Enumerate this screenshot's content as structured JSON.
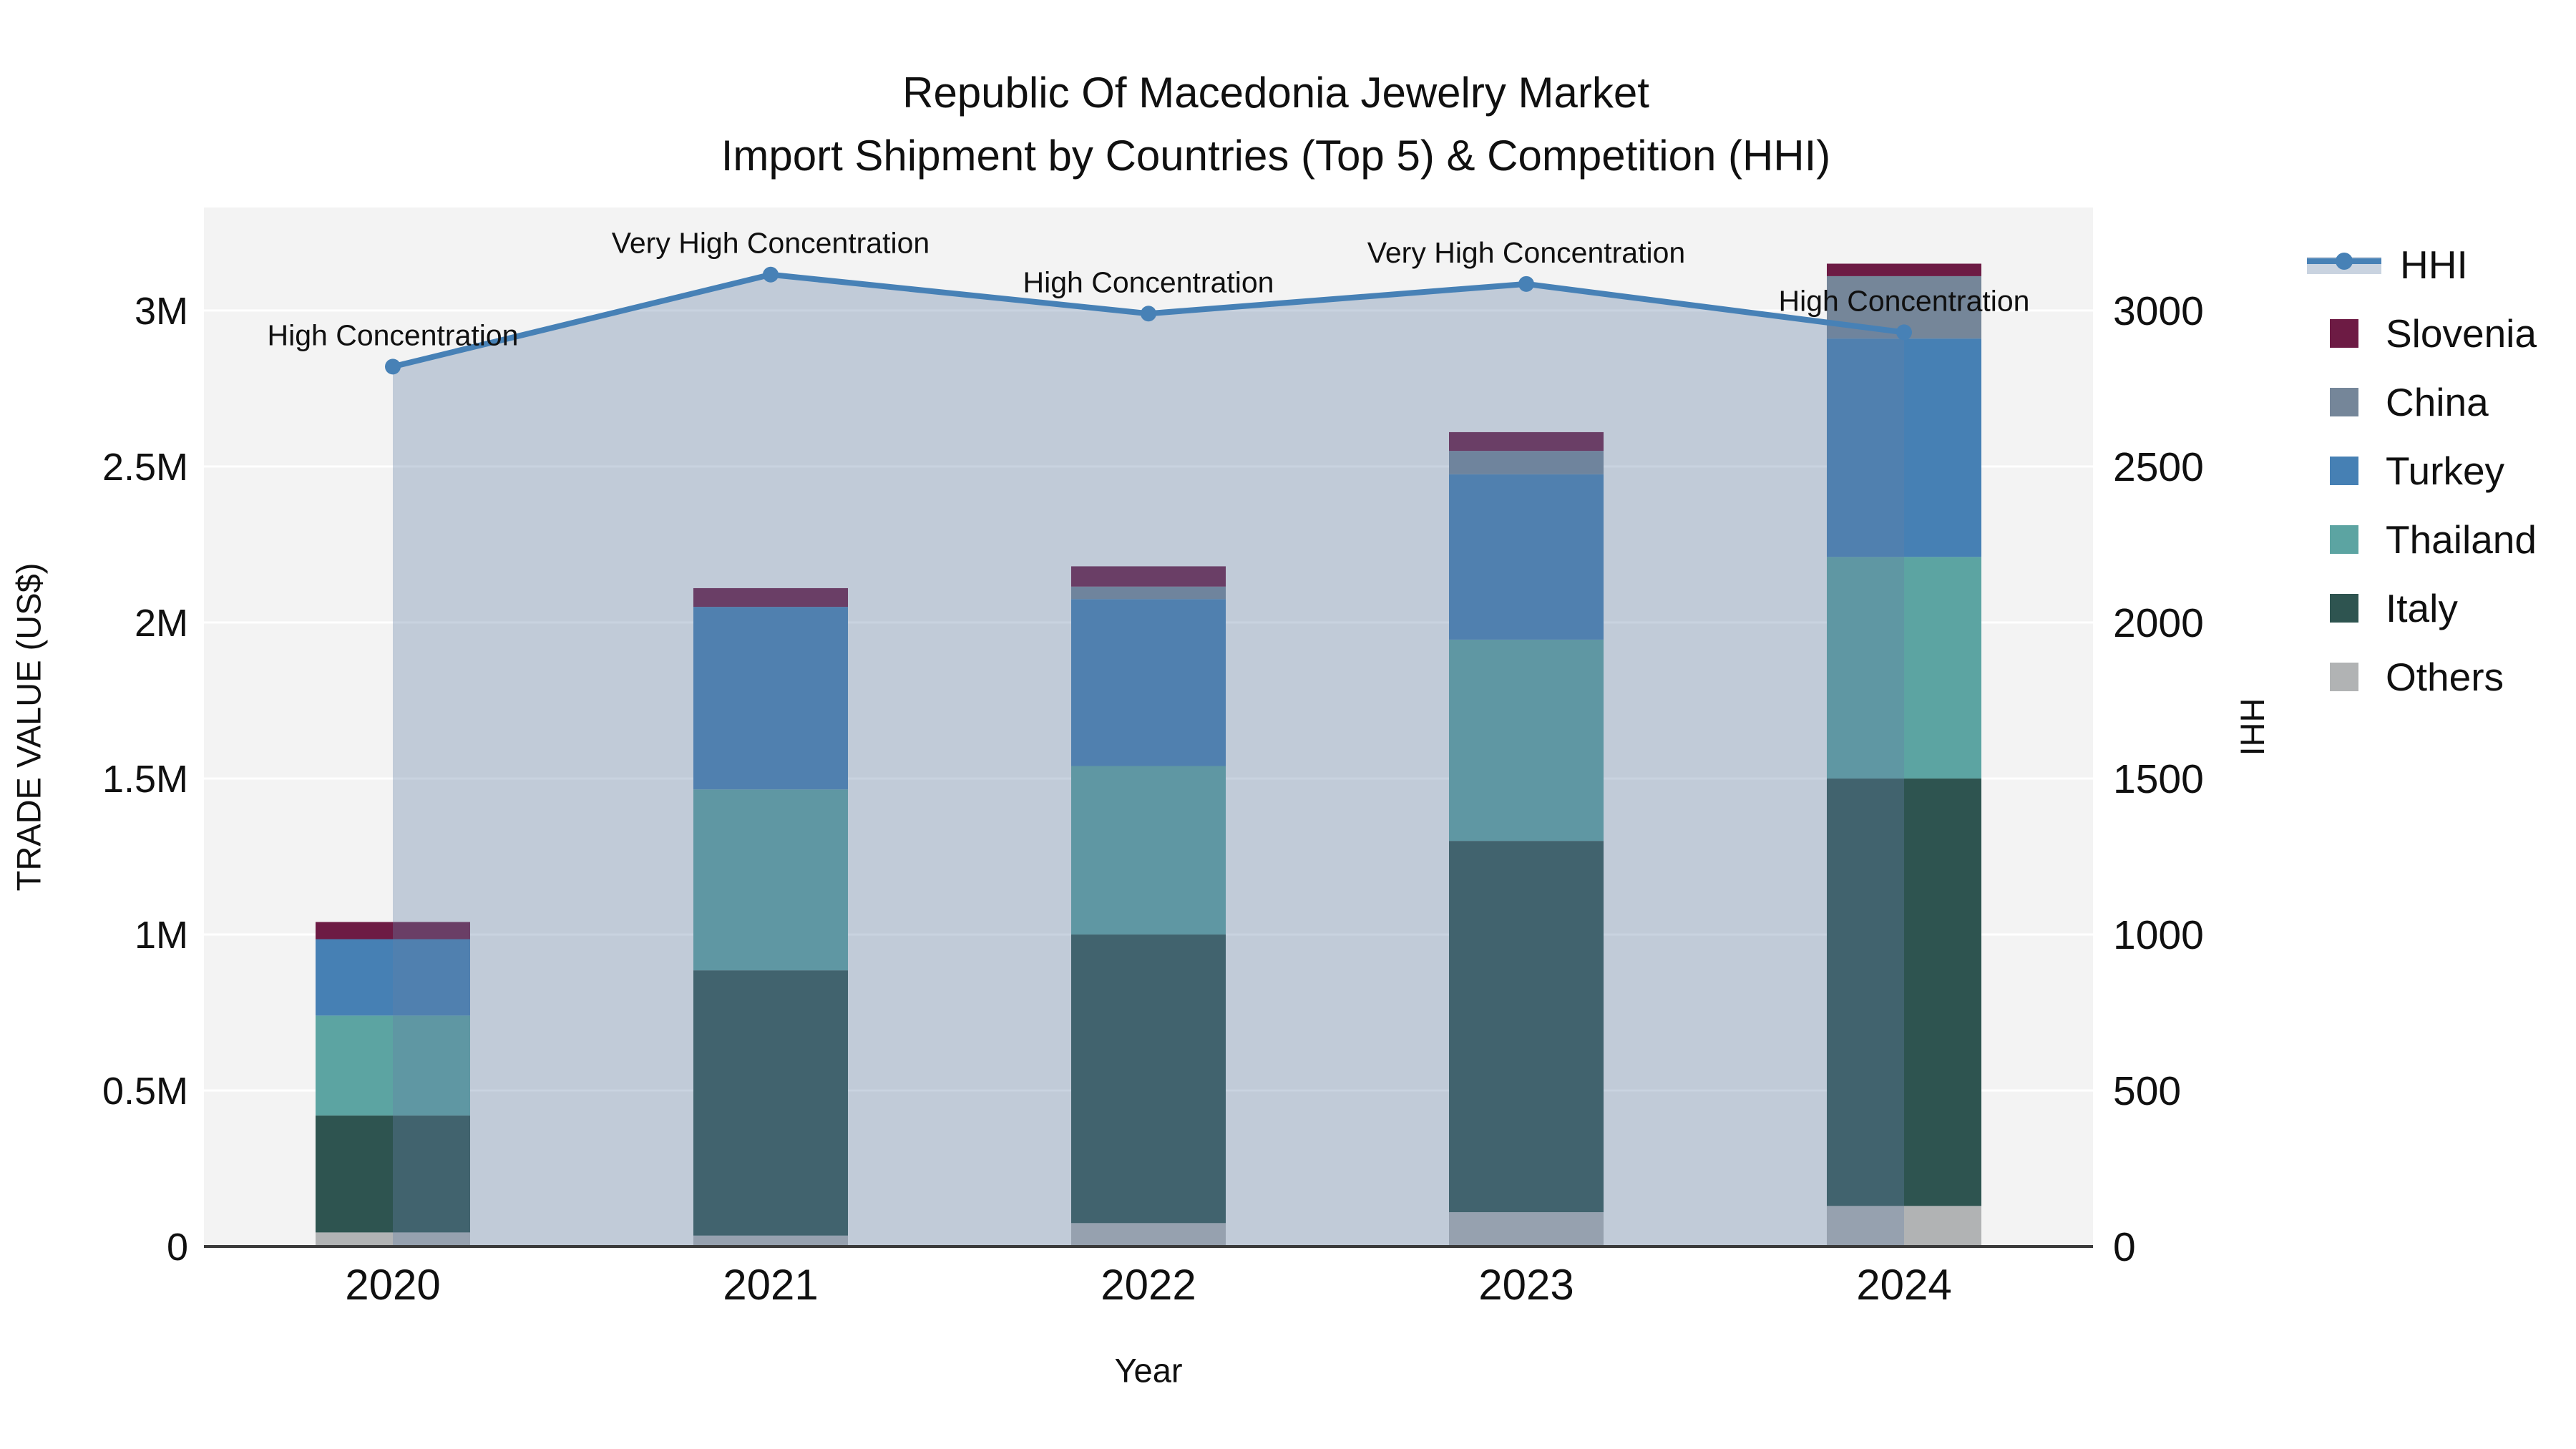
{
  "title": {
    "line1": "Republic Of Macedonia Jewelry Market",
    "line2": "Import Shipment by Countries (Top 5) & Competition (HHI)"
  },
  "axes": {
    "x": {
      "title": "Year",
      "categories": [
        "2020",
        "2021",
        "2022",
        "2023",
        "2024"
      ]
    },
    "y_left": {
      "title": "TRADE VALUE (US$)",
      "ticks": [
        "0",
        "0.5M",
        "1M",
        "1.5M",
        "2M",
        "2.5M",
        "3M"
      ],
      "tick_values": [
        0,
        500000,
        1000000,
        1500000,
        2000000,
        2500000,
        3000000
      ],
      "max": 3330000
    },
    "y_right": {
      "title": "HHI",
      "ticks": [
        "0",
        "500",
        "1000",
        "1500",
        "2000",
        "2500",
        "3000"
      ],
      "tick_values": [
        0,
        500,
        1000,
        1500,
        2000,
        2500,
        3000
      ],
      "max": 3330
    }
  },
  "chart_data": {
    "type": "bar+line",
    "categories": [
      "2020",
      "2021",
      "2022",
      "2023",
      "2024"
    ],
    "bar_stack_note": "stacked bars, US$ trade value, listed bottom-to-top",
    "bar_series": [
      {
        "name": "Others",
        "color": "#b1b3b4",
        "values": [
          45000,
          35000,
          75000,
          110000,
          130000
        ]
      },
      {
        "name": "Italy",
        "color": "#2e5450",
        "values": [
          375000,
          850000,
          925000,
          1190000,
          1370000
        ]
      },
      {
        "name": "Thailand",
        "color": "#5ca4a2",
        "values": [
          320000,
          580000,
          540000,
          645000,
          710000
        ]
      },
      {
        "name": "Turkey",
        "color": "#4680b4",
        "values": [
          245000,
          585000,
          535000,
          530000,
          700000
        ]
      },
      {
        "name": "China",
        "color": "#758699",
        "values": [
          0,
          0,
          40000,
          75000,
          200000
        ]
      },
      {
        "name": "Slovenia",
        "color": "#6d1b44",
        "values": [
          55000,
          60000,
          65000,
          60000,
          40000
        ]
      }
    ],
    "bar_totals": [
      1040000,
      2110000,
      2180000,
      2610000,
      3150000
    ],
    "line_series": {
      "name": "HHI",
      "axis": "right",
      "color": "#4781b6",
      "fill": "rgba(101,129,165,0.35)",
      "values": [
        2820,
        3115,
        2990,
        3085,
        2930
      ]
    },
    "annotations": [
      "High Concentration",
      "Very High Concentration",
      "High Concentration",
      "Very High Concentration",
      "High Concentration"
    ],
    "layout_hints": {
      "grid": true,
      "legend_position": "right",
      "plot_bg": "#f3f3f3"
    }
  },
  "legend": {
    "items": [
      {
        "label": "HHI",
        "type": "line",
        "color": "#4781b6",
        "band": "rgba(101,129,165,0.35)"
      },
      {
        "label": "Slovenia",
        "type": "swatch",
        "color": "#6d1b44"
      },
      {
        "label": "China",
        "type": "swatch",
        "color": "#758699"
      },
      {
        "label": "Turkey",
        "type": "swatch",
        "color": "#4680b4"
      },
      {
        "label": "Thailand",
        "type": "swatch",
        "color": "#5ca4a2"
      },
      {
        "label": "Italy",
        "type": "swatch",
        "color": "#2e5450"
      },
      {
        "label": "Others",
        "type": "swatch",
        "color": "#b1b3b4"
      }
    ]
  },
  "style": {
    "plot_bg": "#f3f3f3",
    "grid_color": "#ffffff",
    "axis_line_color": "#3a3a3a",
    "text_color": "#101010"
  }
}
